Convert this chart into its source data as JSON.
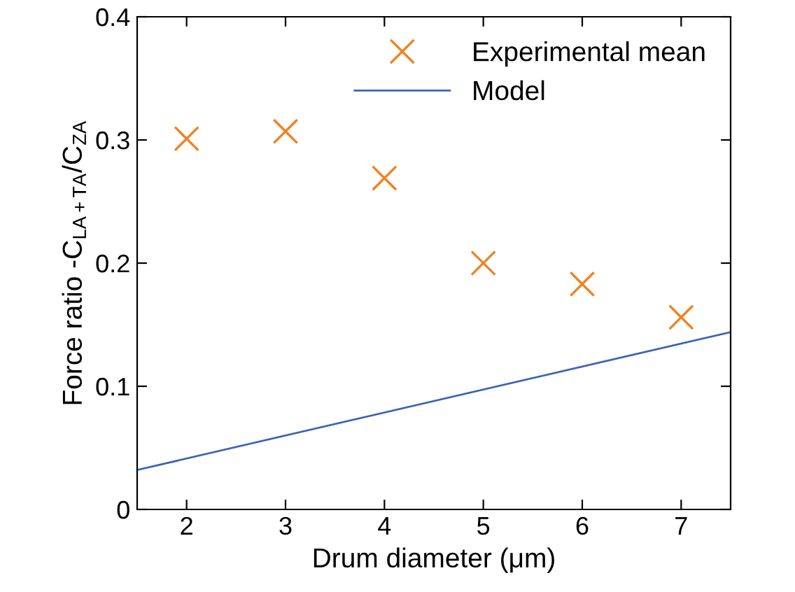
{
  "chart_data": {
    "type": "scatter",
    "xlabel": "Drum diameter (μm)",
    "ylabel": "Force ratio -C$_{LA+TA}$/C$_{ZA}$",
    "xlim": [
      1.5,
      7.5
    ],
    "ylim": [
      0,
      0.4
    ],
    "xticks": [
      2,
      3,
      4,
      5,
      6,
      7
    ],
    "yticks": [
      0,
      0.1,
      0.2,
      0.3,
      0.4
    ],
    "grid": false,
    "legend": "top right",
    "series": [
      {
        "name": "Experimental mean",
        "type": "scatter",
        "marker": "cross",
        "color": "#f08020",
        "x": [
          2,
          3,
          4,
          5,
          6,
          7
        ],
        "values": [
          0.301,
          0.307,
          0.269,
          0.2,
          0.183,
          0.156
        ]
      },
      {
        "name": "Model",
        "type": "line",
        "marker": "none",
        "color": "#3c64b4",
        "x": [
          1.5,
          7.5
        ],
        "values": [
          0.032,
          0.144
        ]
      }
    ]
  }
}
